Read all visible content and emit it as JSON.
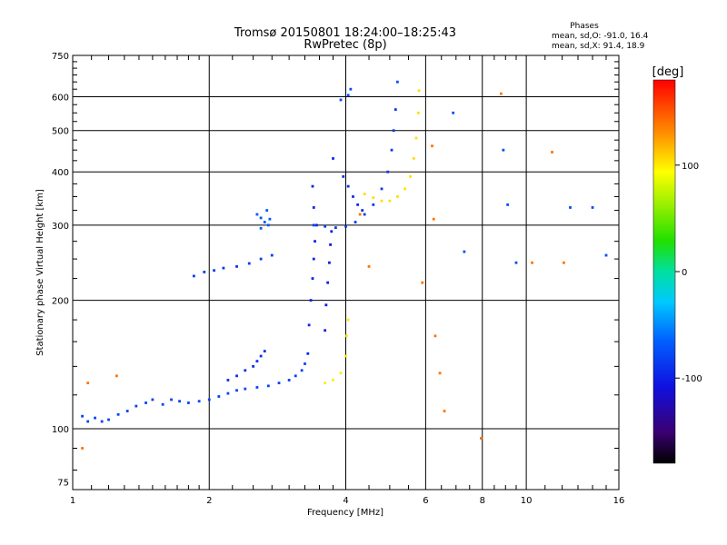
{
  "chart_data": {
    "type": "scatter",
    "title": "Tromsø 20150801 18:24:00–18:25:43",
    "subtitle": "RwPretec (8p)",
    "xlabel": "Frequency [MHz]",
    "ylabel": "Stationary phase Virtual Height [km]",
    "x_scale": "log",
    "y_scale": "log",
    "xlim": [
      1,
      16
    ],
    "ylim": [
      72,
      750
    ],
    "x_ticks": [
      1,
      2,
      4,
      6,
      8,
      10,
      16
    ],
    "y_ticks": [
      75,
      100,
      200,
      300,
      400,
      500,
      600,
      750
    ],
    "x_gridlines": [
      2,
      4,
      6,
      8,
      10
    ],
    "y_gridlines": [
      100,
      200,
      300,
      400,
      500,
      600
    ],
    "x_minor_ticks": [
      1.1,
      1.2,
      1.3,
      1.4,
      1.5,
      1.6,
      1.7,
      1.8,
      1.9,
      2.25,
      2.5,
      2.75,
      3,
      3.25,
      3.5,
      3.75,
      4.5,
      5,
      5.5,
      6.5,
      7,
      7.5,
      8.5,
      9,
      9.5,
      11,
      12,
      13,
      14,
      15
    ],
    "y_minor_ticks": [
      80,
      90,
      120,
      140,
      160,
      180,
      225,
      250,
      275,
      325,
      350,
      375,
      425,
      450,
      475,
      525,
      550,
      575,
      625,
      650,
      675,
      700,
      725
    ],
    "grid": true,
    "legend": {
      "heading": "Phases",
      "lines": [
        "mean, sd,O: -91.0, 16.4",
        "mean, sd,X:  91.4, 18.9"
      ]
    },
    "colorbar": {
      "label": "[deg]",
      "range": [
        -180,
        180
      ],
      "ticks": [
        100,
        0,
        -100
      ],
      "colormap": "rainbow-with-black"
    },
    "clusters": [
      {
        "name": "f-low-trace",
        "phase": -85,
        "points": [
          [
            1.05,
            107
          ],
          [
            1.08,
            104
          ],
          [
            1.12,
            106
          ],
          [
            1.16,
            104
          ],
          [
            1.2,
            105
          ],
          [
            1.26,
            108
          ],
          [
            1.32,
            110
          ],
          [
            1.38,
            113
          ],
          [
            1.45,
            115
          ],
          [
            1.5,
            117
          ],
          [
            1.58,
            114
          ],
          [
            1.65,
            117
          ],
          [
            1.72,
            116
          ],
          [
            1.8,
            115
          ],
          [
            1.9,
            116
          ],
          [
            2.0,
            117
          ],
          [
            2.1,
            119
          ],
          [
            2.2,
            121
          ],
          [
            2.3,
            123
          ],
          [
            2.4,
            124
          ],
          [
            2.55,
            125
          ],
          [
            2.7,
            126
          ],
          [
            2.85,
            128
          ],
          [
            3.0,
            130
          ],
          [
            3.1,
            133
          ],
          [
            3.2,
            137
          ],
          [
            3.25,
            142
          ]
        ]
      },
      {
        "name": "f-low-upper-trace",
        "phase": -95,
        "points": [
          [
            2.2,
            130
          ],
          [
            2.3,
            133
          ],
          [
            2.4,
            137
          ],
          [
            2.5,
            140
          ],
          [
            2.55,
            144
          ],
          [
            2.6,
            148
          ],
          [
            2.65,
            152
          ]
        ]
      },
      {
        "name": "es-trace",
        "phase": -90,
        "points": [
          [
            1.85,
            228
          ],
          [
            1.95,
            233
          ],
          [
            2.05,
            235
          ],
          [
            2.15,
            238
          ],
          [
            2.3,
            240
          ],
          [
            2.45,
            244
          ],
          [
            2.6,
            250
          ],
          [
            2.75,
            255
          ]
        ]
      },
      {
        "name": "light-blue-patch",
        "phase": -75,
        "points": [
          [
            2.55,
            318
          ],
          [
            2.6,
            312
          ],
          [
            2.65,
            305
          ],
          [
            2.7,
            300
          ],
          [
            2.6,
            295
          ],
          [
            2.68,
            325
          ],
          [
            2.72,
            310
          ]
        ]
      },
      {
        "name": "vertical-spread-a",
        "phase": -100,
        "points": [
          [
            3.3,
            150
          ],
          [
            3.32,
            175
          ],
          [
            3.35,
            200
          ],
          [
            3.38,
            225
          ],
          [
            3.4,
            250
          ],
          [
            3.42,
            275
          ],
          [
            3.45,
            300
          ],
          [
            3.4,
            330
          ],
          [
            3.38,
            370
          ]
        ]
      },
      {
        "name": "vertical-spread-b",
        "phase": -105,
        "points": [
          [
            3.6,
            170
          ],
          [
            3.62,
            195
          ],
          [
            3.65,
            220
          ],
          [
            3.68,
            245
          ],
          [
            3.7,
            270
          ],
          [
            3.72,
            290
          ]
        ]
      },
      {
        "name": "f2-o-trace",
        "phase": -90,
        "points": [
          [
            3.4,
            300
          ],
          [
            3.6,
            298
          ],
          [
            3.8,
            296
          ],
          [
            4.0,
            298
          ],
          [
            4.2,
            305
          ],
          [
            4.4,
            318
          ],
          [
            4.6,
            335
          ],
          [
            4.8,
            365
          ],
          [
            4.95,
            400
          ],
          [
            5.05,
            450
          ],
          [
            5.1,
            500
          ],
          [
            5.15,
            560
          ]
        ]
      },
      {
        "name": "f2-o-lower",
        "phase": -95,
        "points": [
          [
            3.75,
            430
          ],
          [
            3.95,
            390
          ],
          [
            4.05,
            370
          ],
          [
            4.15,
            350
          ],
          [
            4.25,
            335
          ],
          [
            4.35,
            325
          ]
        ]
      },
      {
        "name": "f2-x-trace",
        "phase": 105,
        "points": [
          [
            4.4,
            355
          ],
          [
            4.6,
            348
          ],
          [
            4.8,
            342
          ],
          [
            5.0,
            342
          ],
          [
            5.2,
            350
          ],
          [
            5.4,
            365
          ],
          [
            5.55,
            390
          ],
          [
            5.65,
            430
          ],
          [
            5.72,
            480
          ],
          [
            5.78,
            550
          ],
          [
            5.8,
            620
          ]
        ]
      },
      {
        "name": "low-x-trace",
        "phase": 100,
        "points": [
          [
            3.6,
            128
          ],
          [
            3.75,
            130
          ],
          [
            3.9,
            135
          ],
          [
            4.0,
            148
          ],
          [
            4.02,
            165
          ],
          [
            4.05,
            180
          ]
        ]
      },
      {
        "name": "scattered",
        "phase": -80,
        "points": [
          [
            3.9,
            590
          ],
          [
            4.05,
            605
          ],
          [
            4.1,
            625
          ],
          [
            5.2,
            650
          ],
          [
            6.9,
            550
          ],
          [
            7.3,
            260
          ],
          [
            8.9,
            450
          ],
          [
            9.1,
            335
          ],
          [
            9.5,
            245
          ],
          [
            12.5,
            330
          ],
          [
            14,
            330
          ],
          [
            15,
            255
          ]
        ]
      },
      {
        "name": "scattered-warm",
        "phase": 140,
        "points": [
          [
            1.05,
            90
          ],
          [
            1.08,
            128
          ],
          [
            1.25,
            133
          ],
          [
            4.3,
            318
          ],
          [
            8.8,
            610
          ],
          [
            10.3,
            245
          ],
          [
            11.4,
            445
          ],
          [
            12.1,
            245
          ],
          [
            7.95,
            95
          ],
          [
            6.2,
            460
          ],
          [
            6.25,
            310
          ],
          [
            5.9,
            220
          ],
          [
            4.5,
            240
          ],
          [
            6.3,
            165
          ],
          [
            6.45,
            135
          ],
          [
            6.6,
            110
          ]
        ]
      }
    ]
  }
}
